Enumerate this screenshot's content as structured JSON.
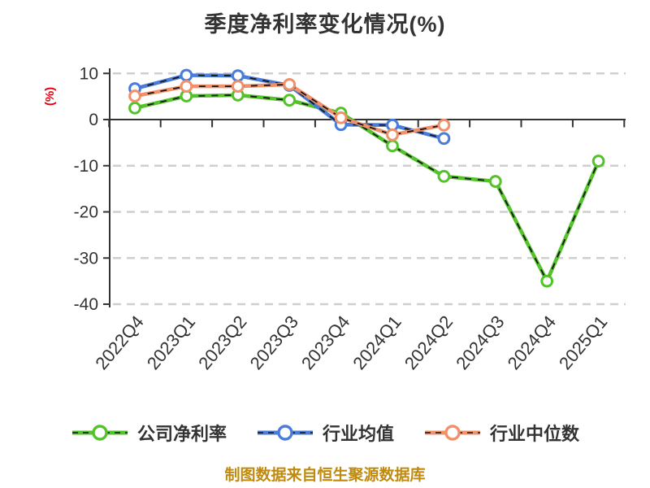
{
  "title": "季度净利率变化情况(%)",
  "y_axis_label": "(%)",
  "footer_note": "制图数据来自恒生聚源数据库",
  "colors": {
    "title_text": "#333333",
    "axis": "#333333",
    "tick_label": "#333333",
    "gridline": "#cfcfcf",
    "y_axis_label": "#e60012",
    "footer": "#bf8a0d",
    "line_dash_overlay": "#151515",
    "marker_fill": "#ffffff",
    "series_company": "#53c22b",
    "series_industry_mean": "#4a7cd9",
    "series_industry_median": "#f09169"
  },
  "chart_data": {
    "type": "line",
    "title": "季度净利率变化情况(%)",
    "xlabel": "",
    "ylabel": "(%)",
    "categories": [
      "2022Q4",
      "2023Q1",
      "2023Q2",
      "2023Q3",
      "2023Q4",
      "2024Q1",
      "2024Q2",
      "2024Q3",
      "2024Q4",
      "2025Q1"
    ],
    "series": [
      {
        "name": "公司净利率",
        "color": "#53c22b",
        "values": [
          2.5,
          5.1,
          5.3,
          4.2,
          1.4,
          -5.7,
          -12.3,
          -13.4,
          -35.0,
          -9.0
        ]
      },
      {
        "name": "行业均值",
        "color": "#4a7cd9",
        "values": [
          6.7,
          9.6,
          9.5,
          7.4,
          -1.1,
          -1.2,
          -4.1,
          null,
          null,
          null
        ]
      },
      {
        "name": "行业中位数",
        "color": "#f09169",
        "values": [
          5.1,
          7.2,
          7.2,
          7.6,
          0.4,
          -3.3,
          -1.2,
          null,
          null,
          null
        ]
      }
    ],
    "y_ticks": [
      10,
      0,
      -10,
      -20,
      -30,
      -40
    ],
    "ylim": [
      -40,
      10
    ],
    "grid": "dashed horizontal",
    "line_style": "solid color with black dashed overlay, white circle markers",
    "legend_position": "bottom"
  }
}
